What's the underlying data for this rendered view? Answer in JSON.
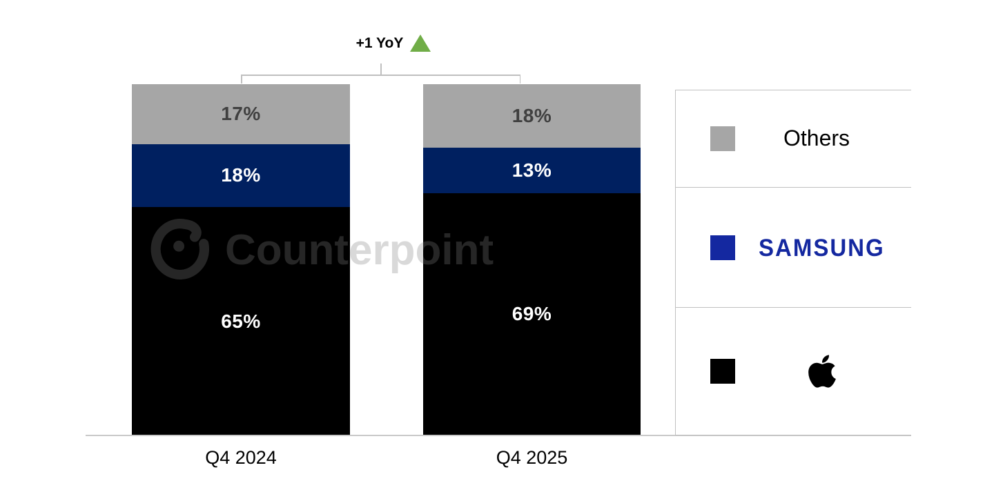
{
  "annotation": {
    "label": "+1 YoY",
    "arrow": "up-triangle",
    "arrow_color": "#70AD47"
  },
  "watermark": {
    "text": "Counterpoint"
  },
  "chart_data": {
    "type": "bar",
    "stacked": true,
    "categories": [
      "Q4 2024",
      "Q4 2025"
    ],
    "series": [
      {
        "name": "Others",
        "color": "#A6A6A6",
        "label_color": "#404040",
        "values": [
          17,
          18
        ]
      },
      {
        "name": "Samsung",
        "color": "#002060",
        "label_color": "#FFFFFF",
        "values": [
          18,
          13
        ]
      },
      {
        "name": "Apple",
        "color": "#000000",
        "label_color": "#FFFFFF",
        "values": [
          65,
          69
        ]
      }
    ],
    "stack_order": "top-to-bottom",
    "value_suffix": "%",
    "ylim": [
      0,
      100
    ],
    "grid": false,
    "annotation": "+1 YoY",
    "legend_position": "right"
  },
  "legend": {
    "items": [
      {
        "label": "Others",
        "swatch_color": "#A6A6A6",
        "icon": null
      },
      {
        "label": "SAMSUNG",
        "swatch_color": "#1428A0",
        "icon": "samsung-wordmark",
        "text_color": "#1428A0"
      },
      {
        "label": "Apple",
        "swatch_color": "#000000",
        "icon": "apple-logo"
      }
    ]
  },
  "colors": {
    "bar_gray": "#A6A6A6",
    "bar_navy": "#002060",
    "bar_black": "#000000",
    "accent_green": "#70AD47",
    "samsung_blue": "#1428A0",
    "line_gray": "#C0C0C0"
  }
}
